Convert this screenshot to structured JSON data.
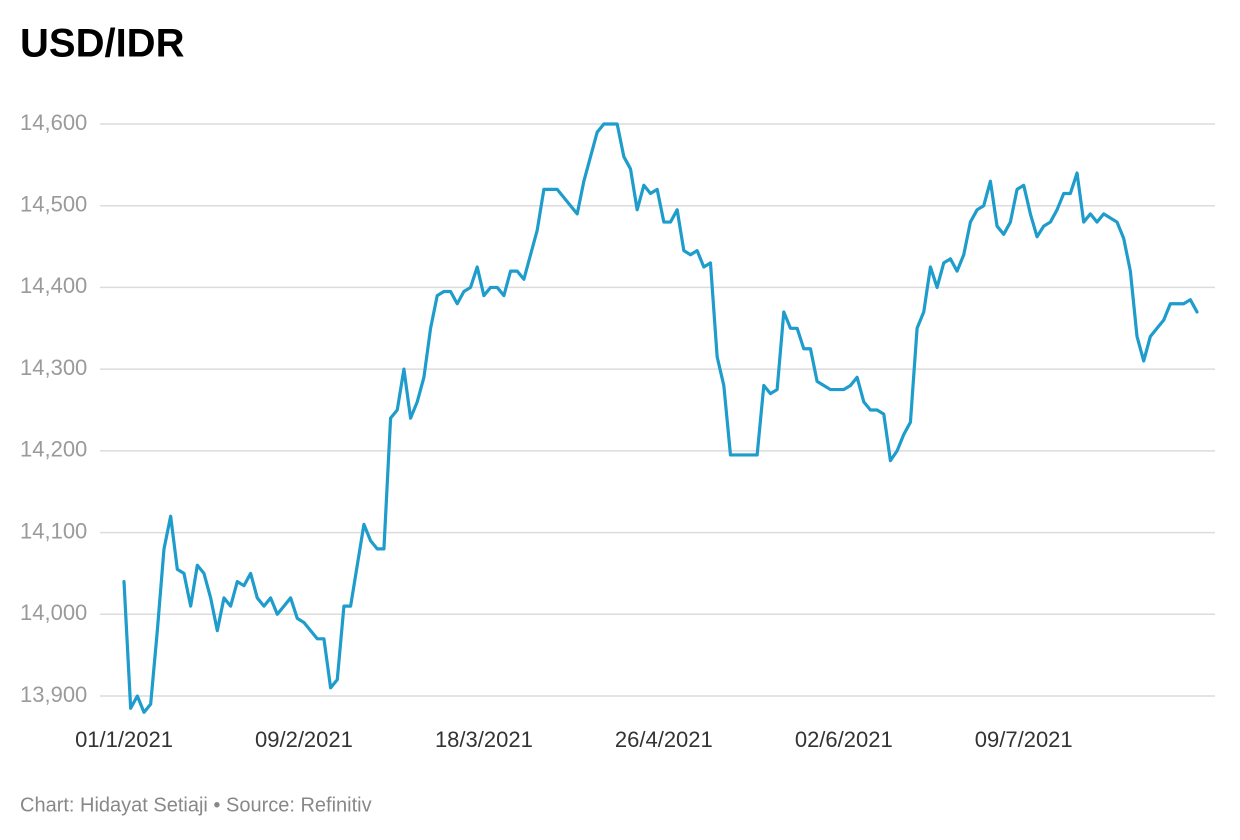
{
  "chart_data": {
    "type": "line",
    "title": "USD/IDR",
    "source": "Chart: Hidayat Setiaji • Source: Refinitiv",
    "color": "#1e9ccb",
    "grid": true,
    "ylim": [
      13870,
      14630
    ],
    "yticks": [
      {
        "value": 13900,
        "label": "13,900"
      },
      {
        "value": 14000,
        "label": "14,000"
      },
      {
        "value": 14100,
        "label": "14,100"
      },
      {
        "value": 14200,
        "label": "14,200"
      },
      {
        "value": 14300,
        "label": "14,300"
      },
      {
        "value": 14400,
        "label": "14,400"
      },
      {
        "value": 14500,
        "label": "14,500"
      },
      {
        "value": 14600,
        "label": "14,600"
      }
    ],
    "categories": [
      "01/1/2021",
      null,
      null,
      null,
      null,
      null,
      null,
      null,
      null,
      null,
      null,
      null,
      null,
      null,
      null,
      null,
      null,
      null,
      null,
      null,
      null,
      null,
      null,
      null,
      null,
      null,
      null,
      "09/2/2021",
      null,
      null,
      null,
      null,
      null,
      null,
      null,
      null,
      null,
      null,
      null,
      null,
      null,
      null,
      null,
      null,
      null,
      null,
      null,
      null,
      null,
      null,
      null,
      null,
      null,
      null,
      "18/3/2021",
      null,
      null,
      null,
      null,
      null,
      null,
      null,
      null,
      null,
      null,
      null,
      null,
      null,
      null,
      null,
      null,
      null,
      null,
      null,
      null,
      null,
      null,
      null,
      null,
      null,
      null,
      "26/4/2021",
      null,
      null,
      null,
      null,
      null,
      null,
      null,
      null,
      null,
      null,
      null,
      null,
      null,
      null,
      null,
      null,
      null,
      null,
      null,
      null,
      null,
      null,
      null,
      null,
      null,
      null,
      "02/6/2021",
      null,
      null,
      null,
      null,
      null,
      null,
      null,
      null,
      null,
      null,
      null,
      null,
      null,
      null,
      null,
      null,
      null,
      null,
      null,
      null,
      null,
      null,
      null,
      null,
      null,
      null,
      "09/7/2021",
      null,
      null,
      null,
      null,
      null,
      null,
      null,
      null,
      null,
      null,
      null,
      null,
      null,
      null,
      null,
      null,
      null,
      null,
      null,
      null,
      null,
      null,
      null,
      null,
      null,
      null
    ],
    "values": [
      14040,
      13885,
      13900,
      13880,
      13890,
      13980,
      14080,
      14120,
      14055,
      14050,
      14010,
      14060,
      14050,
      14020,
      13980,
      14020,
      14010,
      14040,
      14035,
      14050,
      14020,
      14010,
      14020,
      14000,
      14010,
      14020,
      13995,
      13990,
      13980,
      13970,
      13970,
      13910,
      13920,
      14010,
      14010,
      14060,
      14110,
      14090,
      14080,
      14080,
      14240,
      14250,
      14300,
      14240,
      14260,
      14290,
      14350,
      14390,
      14395,
      14395,
      14380,
      14395,
      14400,
      14425,
      14390,
      14400,
      14400,
      14390,
      14420,
      14420,
      14410,
      14440,
      14470,
      14520,
      14520,
      14520,
      14510,
      14500,
      14490,
      14530,
      14560,
      14590,
      14600,
      14600,
      14600,
      14560,
      14545,
      14495,
      14525,
      14515,
      14520,
      14480,
      14480,
      14495,
      14445,
      14440,
      14445,
      14425,
      14430,
      14315,
      14280,
      14195,
      14195,
      14195,
      14195,
      14195,
      14280,
      14270,
      14275,
      14370,
      14350,
      14350,
      14325,
      14325,
      14285,
      14280,
      14275,
      14275,
      14275,
      14280,
      14290,
      14260,
      14250,
      14250,
      14245,
      14188,
      14200,
      14220,
      14235,
      14350,
      14370,
      14425,
      14400,
      14430,
      14435,
      14420,
      14440,
      14480,
      14495,
      14500,
      14530,
      14475,
      14465,
      14480,
      14520,
      14525,
      14490,
      14462,
      14475,
      14480,
      14495,
      14515,
      14515,
      14540,
      14480,
      14490,
      14480,
      14490,
      14485,
      14480,
      14460,
      14420,
      14340,
      14310,
      14340,
      14350,
      14360,
      14380,
      14380,
      14380,
      14385,
      14370
    ]
  }
}
